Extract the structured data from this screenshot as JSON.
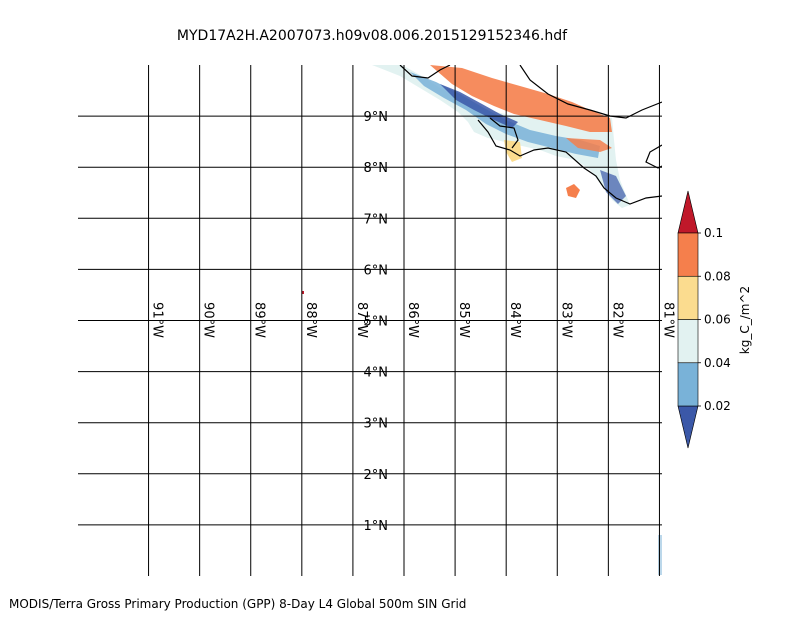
{
  "figure": {
    "title": "MYD17A2H.A2007073.h09v08.006.2015129152346.hdf",
    "caption": "MODIS/Terra Gross Primary Production (GPP) 8-Day L4 Global 500m SIN Grid"
  },
  "map": {
    "projection": "cylindrical",
    "lon_range": [
      -91.97,
      -80.95
    ],
    "lat_range": [
      0,
      10
    ],
    "latitude_labels": [
      "1°N",
      "2°N",
      "3°N",
      "4°N",
      "5°N",
      "6°N",
      "7°N",
      "8°N",
      "9°N"
    ],
    "longitude_labels": [
      "91°W",
      "90°W",
      "89°W",
      "88°W",
      "87°W",
      "86°W",
      "85°W",
      "84°W",
      "83°W",
      "82°W",
      "81°W"
    ]
  },
  "colorbar": {
    "unit_label": "kg_C_/m^2",
    "tick_labels": [
      "0.02",
      "0.04",
      "0.06",
      "0.08",
      "0.1"
    ],
    "colors": [
      "#3b58a8",
      "#79b2d8",
      "#e2f2f1",
      "#fbdc8f",
      "#f57f4c",
      "#c0182a"
    ],
    "extend": "both"
  }
}
